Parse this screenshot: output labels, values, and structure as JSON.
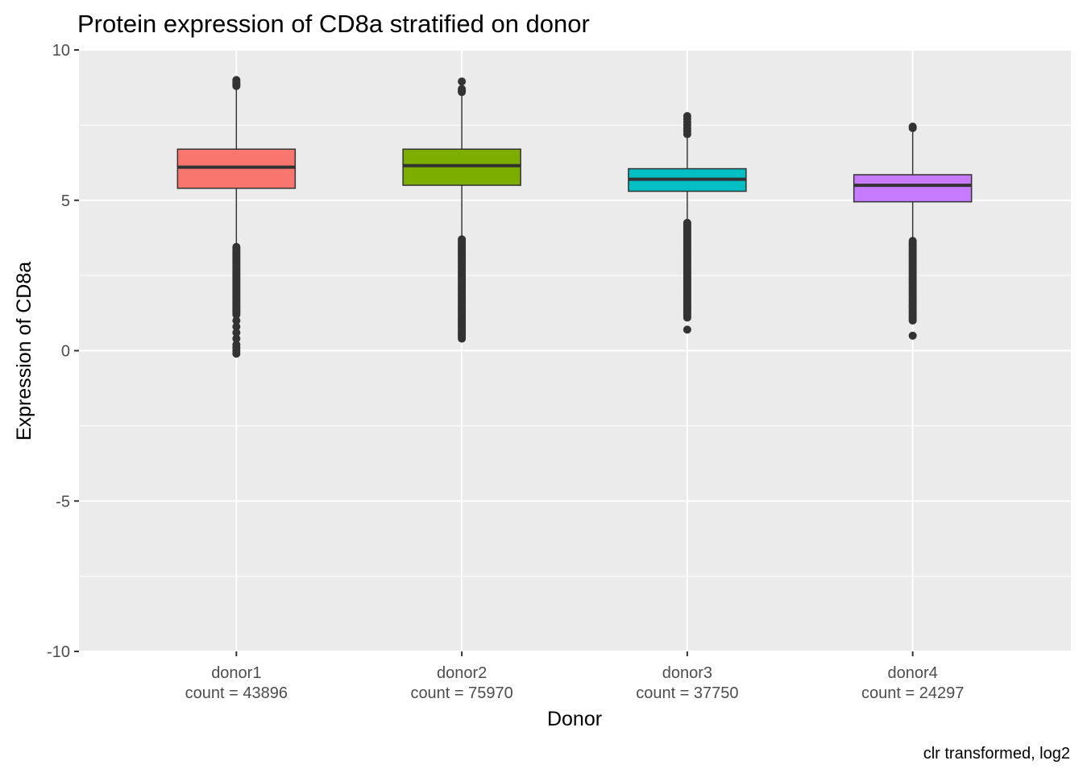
{
  "chart_data": {
    "type": "boxplot",
    "title": "Protein expression of CD8a stratified on donor",
    "xlabel": "Donor",
    "ylabel": "Expression of CD8a",
    "caption": "clr transformed, log2",
    "ylim": [
      -10,
      10
    ],
    "yticks": [
      -10,
      -5,
      0,
      5,
      10
    ],
    "ytick_labels": [
      "-10",
      "-5",
      "0",
      "5",
      "10"
    ],
    "grid": true,
    "legend": "none",
    "categories": [
      "donor1",
      "donor2",
      "donor3",
      "donor4"
    ],
    "category_labels": [
      [
        "donor1",
        "count = 43896"
      ],
      [
        "donor2",
        "count = 75970"
      ],
      [
        "donor3",
        "count = 37750"
      ],
      [
        "donor4",
        "count = 24297"
      ]
    ],
    "series": [
      {
        "category": "donor1",
        "count": 43896,
        "color": "#F8766D",
        "q1": 5.4,
        "median": 6.1,
        "q3": 6.7,
        "whisker_low": 3.5,
        "whisker_high": 8.7,
        "outliers_high": [
          8.8,
          8.85,
          8.9,
          8.95,
          9.0
        ],
        "outliers_low_range": [
          1.2,
          3.45
        ],
        "outliers_low_extra": [
          1.0,
          0.8,
          0.6,
          0.4,
          0.2,
          0.1,
          0.0,
          -0.1
        ]
      },
      {
        "category": "donor2",
        "count": 75970,
        "color": "#7CAE00",
        "q1": 5.5,
        "median": 6.15,
        "q3": 6.7,
        "whisker_low": 3.75,
        "whisker_high": 8.5,
        "outliers_high": [
          8.6,
          8.65,
          8.7,
          8.95
        ],
        "outliers_low_range": [
          0.4,
          3.7
        ],
        "outliers_low_extra": []
      },
      {
        "category": "donor3",
        "count": 37750,
        "color": "#00BFC4",
        "q1": 5.3,
        "median": 5.7,
        "q3": 6.05,
        "whisker_low": 4.3,
        "whisker_high": 7.1,
        "outliers_high": [
          7.2,
          7.3,
          7.4,
          7.5,
          7.6,
          7.7,
          7.8
        ],
        "outliers_low_range": [
          1.1,
          4.25
        ],
        "outliers_low_extra": [
          0.7
        ]
      },
      {
        "category": "donor4",
        "count": 24297,
        "color": "#C77CFF",
        "q1": 4.95,
        "median": 5.5,
        "q3": 5.85,
        "whisker_low": 3.7,
        "whisker_high": 7.35,
        "outliers_high": [
          7.4,
          7.45
        ],
        "outliers_low_range": [
          1.0,
          3.65
        ],
        "outliers_low_extra": [
          0.5
        ]
      }
    ]
  }
}
